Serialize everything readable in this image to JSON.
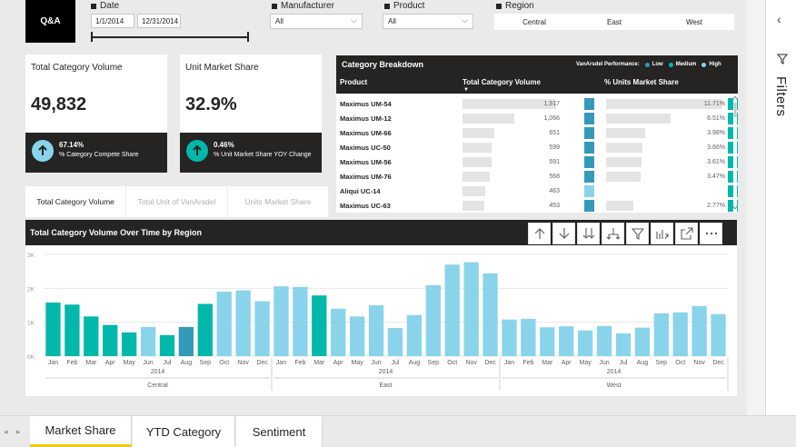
{
  "qa_label": "Q&A",
  "slicers": {
    "date": {
      "title": "Date",
      "start": "1/1/2014",
      "end": "12/31/2014"
    },
    "manufacturer": {
      "title": "Manufacturer",
      "value": "All"
    },
    "product": {
      "title": "Product",
      "value": "All"
    },
    "region": {
      "title": "Region",
      "options": [
        "Central",
        "East",
        "West"
      ]
    }
  },
  "cards": {
    "volume": {
      "title": "Total Category Volume",
      "value": "49,832",
      "kpi_value": "67.14%",
      "kpi_desc": "% Category Compete Share",
      "kpi_color": "#8ad4eb"
    },
    "share": {
      "title": "Unit Market Share",
      "value": "32.9%",
      "kpi_value": "0.46%",
      "kpi_desc": "% Unit Market Share YOY Change",
      "kpi_color": "#01b8aa"
    }
  },
  "visual_tabs": [
    "Total Category Volume",
    "Total Unit of VanArsdel",
    "Units Market Share"
  ],
  "category_breakdown": {
    "title": "Category Breakdown",
    "performance_label": "VanArsdel Performance:",
    "legend": [
      {
        "label": "Low",
        "color": "#3599b8"
      },
      {
        "label": "Medium",
        "color": "#01b8aa"
      },
      {
        "label": "High",
        "color": "#8ad4eb"
      }
    ],
    "columns": [
      "Product",
      "Total Category Volume",
      "% Units Market Share"
    ],
    "rows": [
      {
        "product": "Maximus UM-54",
        "volume": "1,917",
        "volume_level": 1917,
        "volume_color": "#3599b8",
        "share": "11.71%",
        "share_level": 11.71,
        "share_color": "#01b8aa"
      },
      {
        "product": "Maximus UM-12",
        "volume": "1,066",
        "volume_level": 1066,
        "volume_color": "#3599b8",
        "share": "6.51%",
        "share_level": 6.51,
        "share_color": "#01b8aa"
      },
      {
        "product": "Maximus UM-66",
        "volume": "651",
        "volume_level": 651,
        "volume_color": "#3599b8",
        "share": "3.98%",
        "share_level": 3.98,
        "share_color": "#01b8aa"
      },
      {
        "product": "Maximus UC-50",
        "volume": "599",
        "volume_level": 599,
        "volume_color": "#3599b8",
        "share": "3.66%",
        "share_level": 3.66,
        "share_color": "#01b8aa"
      },
      {
        "product": "Maximus UM-56",
        "volume": "591",
        "volume_level": 591,
        "volume_color": "#3599b8",
        "share": "3.61%",
        "share_level": 3.61,
        "share_color": "#01b8aa"
      },
      {
        "product": "Maximus UM-76",
        "volume": "568",
        "volume_level": 568,
        "volume_color": "#3599b8",
        "share": "3.47%",
        "share_level": 3.47,
        "share_color": "#01b8aa"
      },
      {
        "product": "Aliqui UC-14",
        "volume": "463",
        "volume_level": 463,
        "volume_color": "#8ad4eb",
        "share": "",
        "share_level": 0,
        "share_color": "#01b8aa"
      },
      {
        "product": "Maximus UC-63",
        "volume": "453",
        "volume_level": 453,
        "volume_color": "#3599b8",
        "share": "2.77%",
        "share_level": 2.77,
        "share_color": "#01b8aa"
      }
    ]
  },
  "chart": {
    "title": "Total Category Volume Over Time by Region"
  },
  "chart_data": {
    "type": "bar",
    "title": "Total Category Volume Over Time by Region",
    "xlabel": "",
    "ylabel": "",
    "y_ticks": [
      "0K",
      "1K",
      "2K",
      "3K"
    ],
    "ylim": [
      0,
      3000
    ],
    "grid": true,
    "year_label": "2014",
    "groups": [
      {
        "region": "Central",
        "months": [
          "Jan",
          "Feb",
          "Mar",
          "Apr",
          "May",
          "Jun",
          "Jul",
          "Aug",
          "Sep",
          "Oct",
          "Nov",
          "Dec"
        ],
        "values": [
          1580,
          1520,
          1170,
          920,
          700,
          860,
          620,
          860,
          1540,
          1900,
          1940,
          1620
        ],
        "colors": [
          "#01b8aa",
          "#01b8aa",
          "#01b8aa",
          "#01b8aa",
          "#01b8aa",
          "#8ad4eb",
          "#01b8aa",
          "#3599b8",
          "#01b8aa",
          "#8ad4eb",
          "#8ad4eb",
          "#8ad4eb"
        ]
      },
      {
        "region": "East",
        "months": [
          "Jan",
          "Feb",
          "Mar",
          "Apr",
          "May",
          "Jun",
          "Jul",
          "Aug",
          "Sep",
          "Oct",
          "Nov",
          "Dec"
        ],
        "values": [
          2060,
          2040,
          1790,
          1400,
          1170,
          1500,
          830,
          1210,
          2090,
          2700,
          2770,
          2440
        ],
        "colors": [
          "#8ad4eb",
          "#8ad4eb",
          "#01b8aa",
          "#8ad4eb",
          "#8ad4eb",
          "#8ad4eb",
          "#8ad4eb",
          "#8ad4eb",
          "#8ad4eb",
          "#8ad4eb",
          "#8ad4eb",
          "#8ad4eb"
        ]
      },
      {
        "region": "West",
        "months": [
          "Jan",
          "Feb",
          "Mar",
          "Apr",
          "May",
          "Jun",
          "Jul",
          "Aug",
          "Sep",
          "Oct",
          "Nov",
          "Dec"
        ],
        "values": [
          1080,
          1100,
          850,
          880,
          760,
          890,
          670,
          840,
          1260,
          1290,
          1480,
          1240
        ],
        "colors": [
          "#8ad4eb",
          "#8ad4eb",
          "#8ad4eb",
          "#8ad4eb",
          "#8ad4eb",
          "#8ad4eb",
          "#8ad4eb",
          "#8ad4eb",
          "#8ad4eb",
          "#8ad4eb",
          "#8ad4eb",
          "#8ad4eb"
        ]
      }
    ]
  },
  "toolbar_icons": [
    "drill-up-icon",
    "drill-down-icon",
    "expand-next-level-icon",
    "expand-hierarchy-icon",
    "filter-icon",
    "focus-mode-icon",
    "pop-out-icon",
    "more-options-icon"
  ],
  "filters_pane": {
    "label": "Filters"
  },
  "page_tabs": [
    "Market Share",
    "YTD Category",
    "Sentiment"
  ],
  "colors": {
    "dark": "#252423",
    "accent": "#f2c811"
  }
}
